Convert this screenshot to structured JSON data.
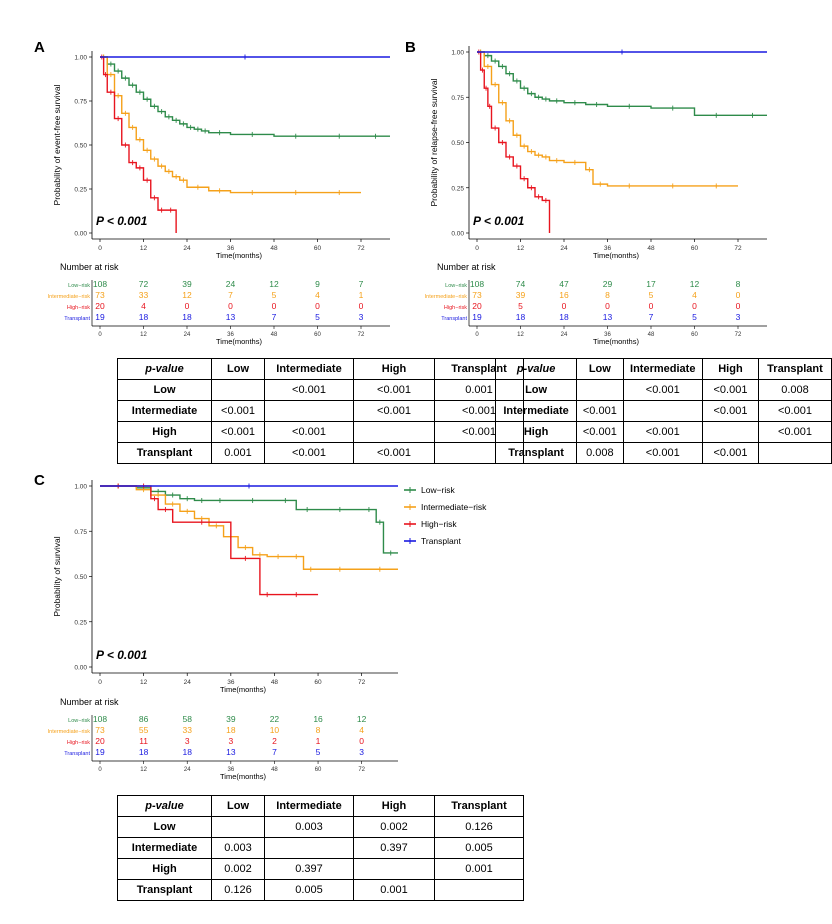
{
  "colors": {
    "low": "#2e8b4a",
    "intermediate": "#f5a11a",
    "high": "#e8141e",
    "transplant": "#1a1ae0"
  },
  "common": {
    "time_label": "Time(months)",
    "nar_title": "Number at risk",
    "pvalue": "P < 0.001",
    "x_ticks": [
      "0",
      "12",
      "24",
      "36",
      "48",
      "60",
      "72"
    ],
    "y_ticks": [
      "0.00",
      "0.25",
      "0.50",
      "0.75",
      "1.00"
    ],
    "series_names": [
      "Low−risk",
      "Intermediate−risk",
      "High−risk",
      "Transplant"
    ]
  },
  "chart_data": [
    {
      "panel": "A",
      "type": "line",
      "ylabel": "Probability of event-free survival",
      "pvalue": "P < 0.001",
      "xlim": [
        0,
        80
      ],
      "ylim": [
        0,
        1
      ],
      "series": [
        {
          "name": "Low-risk",
          "color_key": "low",
          "x": [
            0,
            2,
            4,
            6,
            8,
            10,
            12,
            14,
            16,
            18,
            20,
            22,
            24,
            26,
            28,
            30,
            36,
            48,
            60,
            72,
            80
          ],
          "y": [
            1,
            0.96,
            0.92,
            0.88,
            0.84,
            0.8,
            0.76,
            0.72,
            0.69,
            0.66,
            0.64,
            0.62,
            0.6,
            0.59,
            0.58,
            0.57,
            0.56,
            0.55,
            0.55,
            0.55,
            0.55
          ]
        },
        {
          "name": "Intermediate-risk",
          "color_key": "intermediate",
          "x": [
            0,
            2,
            4,
            6,
            8,
            10,
            12,
            14,
            16,
            18,
            20,
            22,
            24,
            30,
            36,
            48,
            60,
            72
          ],
          "y": [
            1,
            0.9,
            0.78,
            0.68,
            0.6,
            0.53,
            0.47,
            0.42,
            0.38,
            0.35,
            0.32,
            0.3,
            0.26,
            0.24,
            0.23,
            0.23,
            0.23,
            0.23
          ]
        },
        {
          "name": "High-risk",
          "color_key": "high",
          "x": [
            0,
            1,
            2,
            4,
            6,
            8,
            10,
            12,
            14,
            16,
            18,
            21
          ],
          "y": [
            1,
            0.9,
            0.8,
            0.65,
            0.5,
            0.4,
            0.37,
            0.3,
            0.2,
            0.13,
            0.13,
            0
          ]
        },
        {
          "name": "Transplant",
          "color_key": "transplant",
          "x": [
            0,
            80
          ],
          "y": [
            1,
            1
          ]
        }
      ],
      "at_risk": [
        [
          "108",
          "72",
          "39",
          "24",
          "12",
          "9",
          "7"
        ],
        [
          "73",
          "33",
          "12",
          "7",
          "5",
          "4",
          "1"
        ],
        [
          "20",
          "4",
          "0",
          "0",
          "0",
          "0",
          "0"
        ],
        [
          "19",
          "18",
          "18",
          "13",
          "7",
          "5",
          "3"
        ]
      ]
    },
    {
      "panel": "B",
      "type": "line",
      "ylabel": "Probability of relapse-free survival",
      "pvalue": "P < 0.001",
      "xlim": [
        0,
        80
      ],
      "ylim": [
        0,
        1
      ],
      "series": [
        {
          "name": "Low-risk",
          "color_key": "low",
          "x": [
            0,
            2,
            4,
            6,
            8,
            10,
            12,
            14,
            16,
            18,
            20,
            24,
            30,
            36,
            48,
            60,
            72,
            80
          ],
          "y": [
            1,
            0.98,
            0.95,
            0.92,
            0.88,
            0.84,
            0.8,
            0.77,
            0.75,
            0.74,
            0.73,
            0.72,
            0.71,
            0.7,
            0.69,
            0.65,
            0.65,
            0.65
          ]
        },
        {
          "name": "Intermediate-risk",
          "color_key": "intermediate",
          "x": [
            0,
            2,
            4,
            6,
            8,
            10,
            12,
            14,
            16,
            18,
            20,
            24,
            30,
            32,
            36,
            48,
            60,
            72
          ],
          "y": [
            1,
            0.92,
            0.82,
            0.72,
            0.62,
            0.54,
            0.48,
            0.45,
            0.43,
            0.42,
            0.4,
            0.39,
            0.35,
            0.27,
            0.26,
            0.26,
            0.26,
            0.26
          ]
        },
        {
          "name": "High-risk",
          "color_key": "high",
          "x": [
            0,
            1,
            2,
            3,
            4,
            6,
            8,
            10,
            12,
            14,
            16,
            18,
            20
          ],
          "y": [
            1,
            0.9,
            0.8,
            0.7,
            0.58,
            0.5,
            0.42,
            0.37,
            0.3,
            0.25,
            0.2,
            0.18,
            0
          ]
        },
        {
          "name": "Transplant",
          "color_key": "transplant",
          "x": [
            0,
            80
          ],
          "y": [
            1,
            1
          ]
        }
      ],
      "at_risk": [
        [
          "108",
          "74",
          "47",
          "29",
          "17",
          "12",
          "8"
        ],
        [
          "73",
          "39",
          "16",
          "8",
          "5",
          "4",
          "0"
        ],
        [
          "20",
          "5",
          "0",
          "0",
          "0",
          "0",
          "0"
        ],
        [
          "19",
          "18",
          "18",
          "13",
          "7",
          "5",
          "3"
        ]
      ]
    },
    {
      "panel": "C",
      "type": "line",
      "ylabel": "Probability of survival",
      "pvalue": "P < 0.001",
      "xlim": [
        0,
        82
      ],
      "ylim": [
        0,
        1
      ],
      "legend": [
        "Low−risk",
        "Intermediate−risk",
        "High−risk",
        "Transplant"
      ],
      "series": [
        {
          "name": "Low-risk",
          "color_key": "low",
          "x": [
            0,
            10,
            14,
            18,
            22,
            26,
            30,
            36,
            48,
            54,
            60,
            72,
            76,
            78,
            82
          ],
          "y": [
            1,
            0.99,
            0.97,
            0.95,
            0.93,
            0.92,
            0.92,
            0.92,
            0.92,
            0.87,
            0.87,
            0.87,
            0.8,
            0.63,
            0.63
          ]
        },
        {
          "name": "Intermediate-risk",
          "color_key": "intermediate",
          "x": [
            0,
            10,
            14,
            18,
            22,
            26,
            30,
            34,
            38,
            42,
            46,
            52,
            56,
            60,
            72,
            82
          ],
          "y": [
            1,
            0.98,
            0.95,
            0.9,
            0.86,
            0.82,
            0.78,
            0.72,
            0.66,
            0.62,
            0.61,
            0.61,
            0.54,
            0.54,
            0.54,
            0.54
          ]
        },
        {
          "name": "High-risk",
          "color_key": "high",
          "x": [
            0,
            10,
            14,
            16,
            20,
            36,
            44,
            48,
            60
          ],
          "y": [
            1,
            1,
            0.93,
            0.87,
            0.8,
            0.6,
            0.4,
            0.4,
            0.4
          ]
        },
        {
          "name": "Transplant",
          "color_key": "transplant",
          "x": [
            0,
            82
          ],
          "y": [
            1,
            1
          ]
        }
      ],
      "at_risk": [
        [
          "108",
          "86",
          "58",
          "39",
          "22",
          "16",
          "12"
        ],
        [
          "73",
          "55",
          "33",
          "18",
          "10",
          "8",
          "4"
        ],
        [
          "20",
          "11",
          "3",
          "3",
          "2",
          "1",
          "0"
        ],
        [
          "19",
          "18",
          "18",
          "13",
          "7",
          "5",
          "3"
        ]
      ]
    }
  ],
  "tables": [
    {
      "panel": "A",
      "header": [
        "p-value",
        "Low",
        "Intermediate",
        "High",
        "Transplant"
      ],
      "rows": [
        [
          "Low",
          "",
          "<0.001",
          "<0.001",
          "0.001"
        ],
        [
          "Intermediate",
          "<0.001",
          "",
          "<0.001",
          "<0.001"
        ],
        [
          "High",
          "<0.001",
          "<0.001",
          "",
          "<0.001"
        ],
        [
          "Transplant",
          "0.001",
          "<0.001",
          "<0.001",
          ""
        ]
      ]
    },
    {
      "panel": "B",
      "header": [
        "p-value",
        "Low",
        "Intermediate",
        "High",
        "Transplant"
      ],
      "rows": [
        [
          "Low",
          "",
          "<0.001",
          "<0.001",
          "0.008"
        ],
        [
          "Intermediate",
          "<0.001",
          "",
          "<0.001",
          "<0.001"
        ],
        [
          "High",
          "<0.001",
          "<0.001",
          "",
          "<0.001"
        ],
        [
          "Transplant",
          "0.008",
          "<0.001",
          "<0.001",
          ""
        ]
      ]
    },
    {
      "panel": "C",
      "header": [
        "p-value",
        "Low",
        "Intermediate",
        "High",
        "Transplant"
      ],
      "rows": [
        [
          "Low",
          "",
          "0.003",
          "0.002",
          "0.126"
        ],
        [
          "Intermediate",
          "0.003",
          "",
          "0.397",
          "0.005"
        ],
        [
          "High",
          "0.002",
          "0.397",
          "",
          "0.001"
        ],
        [
          "Transplant",
          "0.126",
          "0.005",
          "0.001",
          ""
        ]
      ]
    }
  ]
}
